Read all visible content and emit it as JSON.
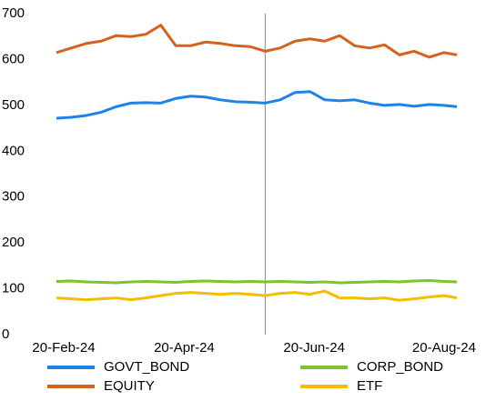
{
  "chart_data": {
    "type": "line",
    "x": [
      "2024-02-20",
      "2024-02-27",
      "2024-03-05",
      "2024-03-12",
      "2024-03-19",
      "2024-03-26",
      "2024-04-02",
      "2024-04-09",
      "2024-04-16",
      "2024-04-23",
      "2024-04-30",
      "2024-05-07",
      "2024-05-14",
      "2024-05-21",
      "2024-05-28",
      "2024-06-04",
      "2024-06-11",
      "2024-06-18",
      "2024-06-25",
      "2024-07-02",
      "2024-07-09",
      "2024-07-16",
      "2024-07-23",
      "2024-07-30",
      "2024-08-06",
      "2024-08-13",
      "2024-08-20",
      "2024-08-26"
    ],
    "series": [
      {
        "name": "GOVT_BOND",
        "color": "#1e83e8",
        "values": [
          472,
          474,
          478,
          485,
          497,
          505,
          506,
          505,
          515,
          520,
          518,
          512,
          508,
          507,
          505,
          512,
          528,
          530,
          512,
          510,
          512,
          505,
          500,
          502,
          498,
          502,
          500,
          497
        ]
      },
      {
        "name": "CORP_BOND",
        "color": "#7cc42d",
        "values": [
          116,
          117,
          115,
          114,
          113,
          115,
          116,
          115,
          114,
          116,
          117,
          116,
          115,
          116,
          115,
          116,
          115,
          114,
          115,
          113,
          114,
          115,
          116,
          115,
          117,
          118,
          116,
          115
        ]
      },
      {
        "name": "EQUITY",
        "color": "#d5621c",
        "values": [
          615,
          625,
          635,
          640,
          652,
          650,
          655,
          675,
          630,
          630,
          638,
          635,
          630,
          628,
          618,
          625,
          640,
          645,
          640,
          652,
          630,
          625,
          632,
          610,
          618,
          605,
          615,
          610
        ]
      },
      {
        "name": "ETF",
        "color": "#f5bd00",
        "values": [
          80,
          78,
          76,
          78,
          80,
          76,
          80,
          85,
          90,
          92,
          90,
          88,
          90,
          88,
          85,
          90,
          92,
          88,
          95,
          80,
          80,
          78,
          80,
          75,
          78,
          82,
          85,
          80
        ]
      }
    ],
    "ylim": [
      0,
      700
    ],
    "yticks": [
      0,
      100,
      200,
      300,
      400,
      500,
      600,
      700
    ],
    "xlim": [
      "2024-02-20",
      "2024-08-26"
    ],
    "xticks": [
      {
        "value": "2024-02-20",
        "label": "20-Feb-24"
      },
      {
        "value": "2024-04-20",
        "label": "20-Apr-24"
      },
      {
        "value": "2024-06-20",
        "label": "20-Jun-24"
      },
      {
        "value": "2024-08-20",
        "label": "20-Aug-24"
      }
    ],
    "marker_date": "2024-05-28",
    "grid": false,
    "legend": "bottom"
  }
}
